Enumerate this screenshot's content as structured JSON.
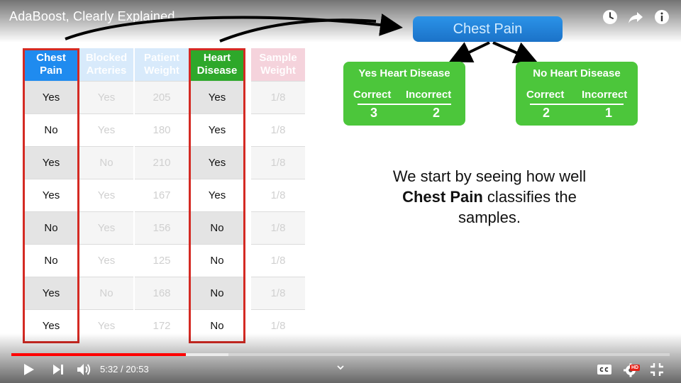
{
  "video": {
    "title": "AdaBoost, Clearly Explained",
    "time_current": "5:32",
    "time_separator": "/",
    "time_total": "20:53",
    "progress_fraction": 0.265,
    "buffered_fraction": 0.33
  },
  "table": {
    "columns": [
      {
        "header": [
          "Chest",
          "Pain"
        ],
        "highlight": true,
        "header_color": "#1f8bef",
        "cells": [
          "Yes",
          "No",
          "Yes",
          "Yes",
          "No",
          "No",
          "Yes",
          "Yes"
        ]
      },
      {
        "header": [
          "Blocked",
          "Arteries"
        ],
        "highlight": false,
        "header_color": "#d8eafb",
        "cells": [
          "Yes",
          "Yes",
          "No",
          "Yes",
          "Yes",
          "Yes",
          "No",
          "Yes"
        ]
      },
      {
        "header": [
          "Patient",
          "Weight"
        ],
        "highlight": false,
        "header_color": "#d8eafb",
        "cells": [
          "205",
          "180",
          "210",
          "167",
          "156",
          "125",
          "168",
          "172"
        ]
      },
      {
        "header": [
          "Heart",
          "Disease"
        ],
        "highlight": true,
        "header_color": "#2ea82a",
        "cells": [
          "Yes",
          "Yes",
          "Yes",
          "Yes",
          "No",
          "No",
          "No",
          "No"
        ]
      },
      {
        "header": [
          "Sample",
          "Weight"
        ],
        "highlight": false,
        "header_color": "#f5d3dc",
        "cells": [
          "1/8",
          "1/8",
          "1/8",
          "1/8",
          "1/8",
          "1/8",
          "1/8",
          "1/8"
        ]
      }
    ]
  },
  "tree": {
    "root": "Chest Pain",
    "left": {
      "title": "Yes Heart Disease",
      "correct_label": "Correct",
      "incorrect_label": "Incorrect",
      "correct": "3",
      "incorrect": "2"
    },
    "right": {
      "title": "No Heart Disease",
      "correct_label": "Correct",
      "incorrect_label": "Incorrect",
      "correct": "2",
      "incorrect": "1"
    }
  },
  "caption": {
    "line1": "We start by seeing how well",
    "bold": "Chest Pain",
    "line2_rest": " classifies the",
    "line3": "samples."
  },
  "icons": {
    "watch_later": "clock-icon",
    "share": "share-icon",
    "info": "info-icon",
    "play": "play-icon",
    "next": "next-icon",
    "volume": "volume-icon",
    "chevron": "chevron-down-icon",
    "cc": "cc-icon",
    "settings": "gear-icon",
    "hd_badge": "HD",
    "exit_fullscreen": "exit-fullscreen-icon"
  }
}
